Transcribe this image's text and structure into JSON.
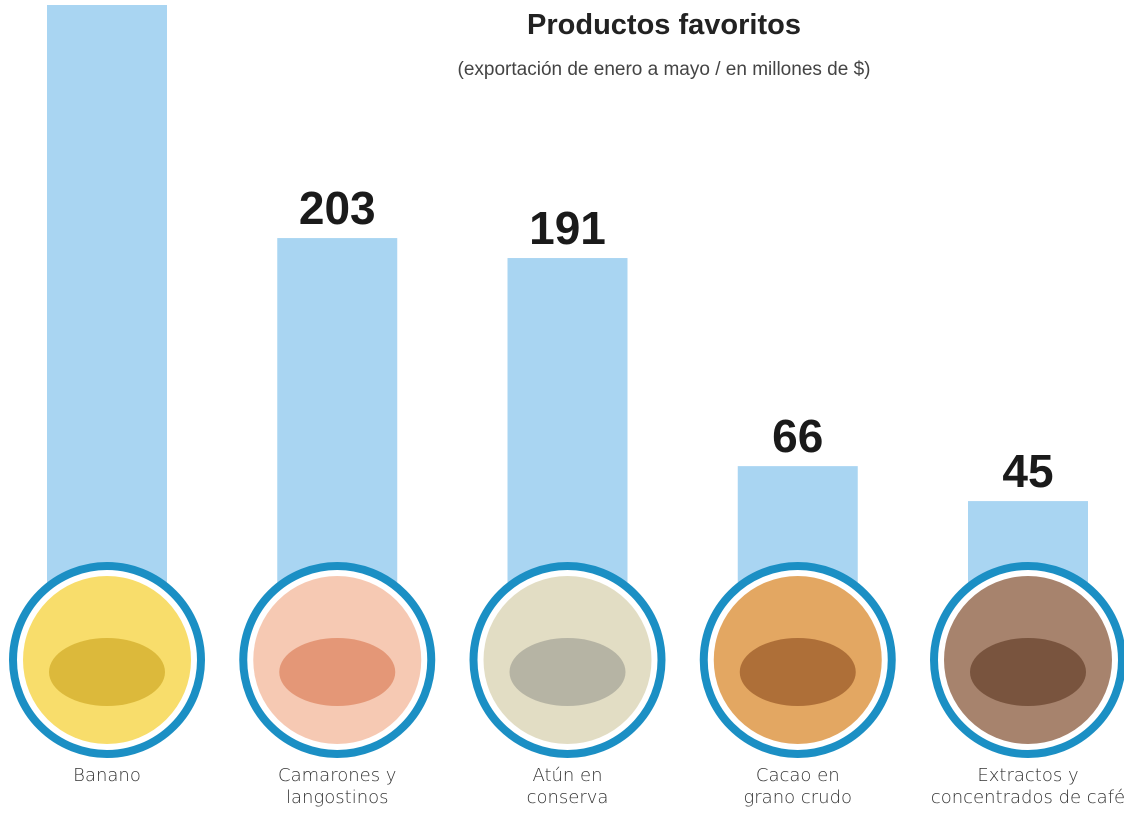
{
  "chart_data": {
    "type": "bar",
    "title": "Productos favoritos",
    "subtitle": "(exportación de enero a mayo / en millones de $)",
    "categories": [
      "Banano",
      "Camarones y langostinos",
      "Atún en conserva",
      "Cacao en grano crudo",
      "Extractos y concentrados de café"
    ],
    "values": [
      343,
      203,
      191,
      66,
      45
    ],
    "color": "#a9d5f2"
  }
}
